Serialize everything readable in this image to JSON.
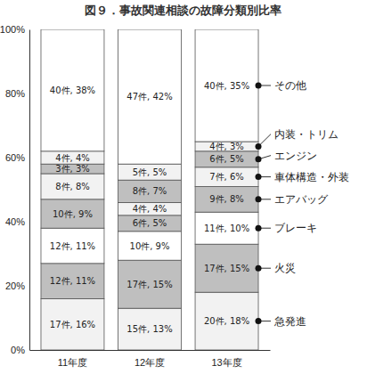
{
  "chart_data": {
    "type": "bar",
    "title": "図９．事故関連相談の故障分類別比率",
    "categories": [
      "11年度",
      "12年度",
      "13年度"
    ],
    "stacked": true,
    "data_labels": true,
    "legend": "right",
    "grid": false,
    "ylim": [
      0,
      100
    ],
    "yticks": [
      {
        "value": 0,
        "label": "0%"
      },
      {
        "value": 20,
        "label": "20%"
      },
      {
        "value": 40,
        "label": "40%"
      },
      {
        "value": 60,
        "label": "60%"
      },
      {
        "value": 80,
        "label": "80%"
      },
      {
        "value": 100,
        "label": "100%"
      }
    ],
    "series": [
      {
        "name": "急発進",
        "color": "#f2f2f2",
        "values": [
          16,
          13,
          18
        ],
        "value_labels": [
          "17件, 16%",
          "15件, 13%",
          "20件, 18%"
        ]
      },
      {
        "name": "火災",
        "color": "#bfbfbf",
        "values": [
          11,
          15,
          15
        ],
        "value_labels": [
          "12件, 11%",
          "17件, 15%",
          "17件, 15%"
        ]
      },
      {
        "name": "ブレーキ",
        "color": "#ffffff",
        "values": [
          11,
          9,
          10
        ],
        "value_labels": [
          "12件, 11%",
          "10件, 9%",
          "11件, 10%"
        ]
      },
      {
        "name": "エアバッグ",
        "color": "#bfbfbf",
        "values": [
          9,
          5,
          8
        ],
        "value_labels": [
          "10件, 9%",
          "6件, 5%",
          "9件, 8%"
        ]
      },
      {
        "name": "車体構造・外装",
        "color": "#f2f2f2",
        "values": [
          8,
          4,
          6
        ],
        "value_labels": [
          "8件, 8%",
          "4件, 4%",
          "7件, 6%"
        ]
      },
      {
        "name": "エンジン",
        "color": "#bfbfbf",
        "values": [
          3,
          7,
          5
        ],
        "value_labels": [
          "3件, 3%",
          "8件, 7%",
          "6件, 5%"
        ]
      },
      {
        "name": "内装・トリム",
        "color": "#f2f2f2",
        "values": [
          4,
          5,
          3
        ],
        "value_labels": [
          "4件, 4%",
          "5件, 5%",
          "4件, 3%"
        ]
      },
      {
        "name": "その他",
        "color": "#ffffff",
        "values": [
          38,
          42,
          35
        ],
        "value_labels": [
          "40件, 38%",
          "47件, 42%",
          "40件, 35%"
        ]
      }
    ]
  }
}
